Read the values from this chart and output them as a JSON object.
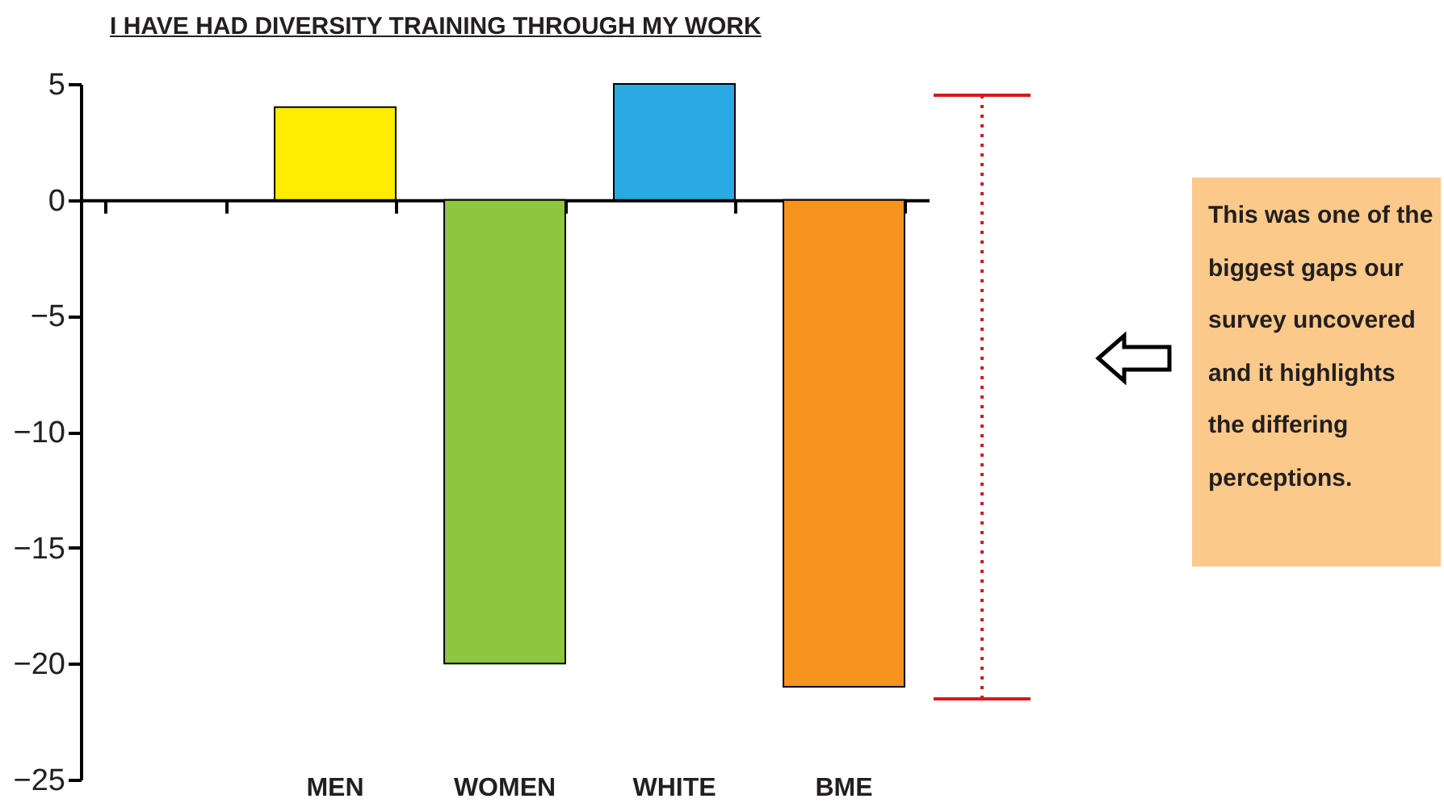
{
  "chart_data": {
    "type": "bar",
    "title": "I HAVE HAD DIVERSITY TRAINING THROUGH MY WORK",
    "categories": [
      null,
      "MEN",
      "WOMEN",
      "WHITE",
      "BME"
    ],
    "values": [
      null,
      4,
      -20,
      5,
      -21
    ],
    "colors": [
      null,
      "#ffed00",
      "#8dc63f",
      "#29abe2",
      "#f7941d"
    ],
    "ylim": [
      -25,
      5
    ],
    "yticks": [
      5,
      0,
      -5,
      -10,
      -15,
      -20,
      -25
    ],
    "annotations": [
      "This was one of the biggest gaps our survey uncovered and it highlights the differing perceptions."
    ]
  }
}
